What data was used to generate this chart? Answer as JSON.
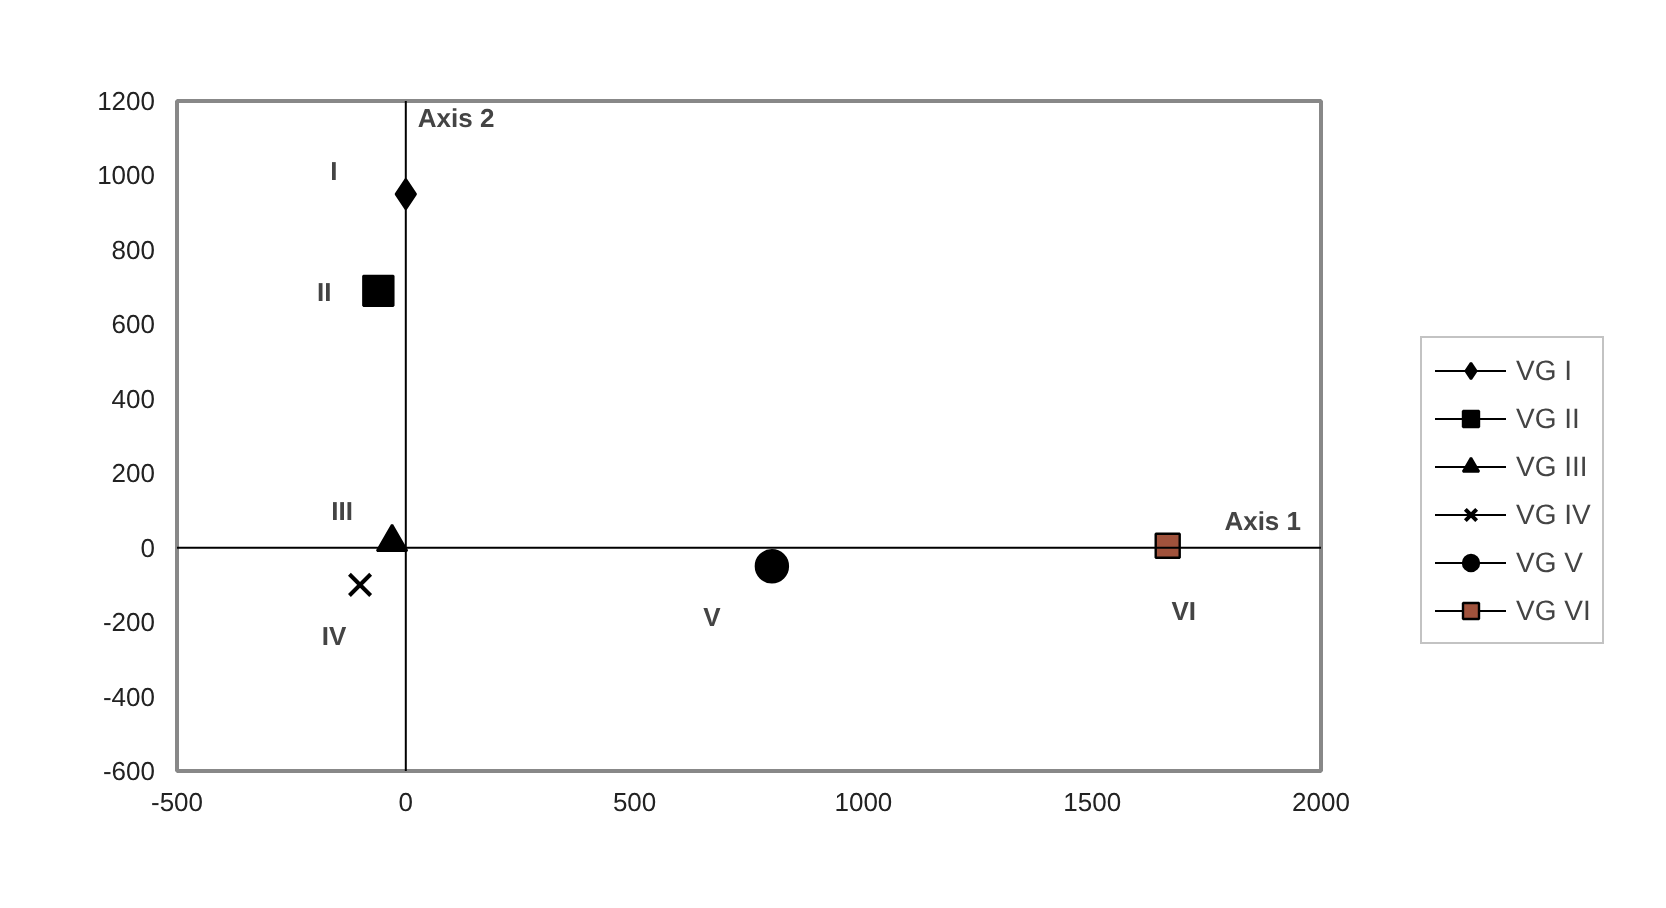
{
  "chart_data": {
    "type": "scatter",
    "xlim": [
      -500,
      2000
    ],
    "xticks": [
      -500,
      0,
      500,
      1000,
      1500,
      2000
    ],
    "ylim": [
      -600,
      1200
    ],
    "yticks": [
      -600,
      -400,
      -200,
      0,
      200,
      400,
      600,
      800,
      1000,
      1200
    ],
    "grid": false,
    "legend": "right",
    "series": [
      {
        "name": "VG I",
        "color": "#000000",
        "marker": "diamond",
        "x": [
          0
        ],
        "values": [
          950
        ]
      },
      {
        "name": "VG II",
        "color": "#000000",
        "marker": "square",
        "x": [
          -60
        ],
        "values": [
          690
        ]
      },
      {
        "name": "VG III",
        "color": "#000000",
        "marker": "triangle",
        "x": [
          -30
        ],
        "values": [
          15
        ]
      },
      {
        "name": "VG IV",
        "color": "#000000",
        "marker": "cross",
        "x": [
          -100
        ],
        "values": [
          -100
        ]
      },
      {
        "name": "VG V",
        "color": "#000000",
        "marker": "circle",
        "x": [
          800
        ],
        "values": [
          -50
        ]
      },
      {
        "name": "VG VI",
        "color": "#a0523c",
        "marker": "square",
        "x": [
          1665
        ],
        "values": [
          5
        ]
      }
    ],
    "ref_lines": [
      {
        "axis": "y",
        "value": 0,
        "label": "Axis 1"
      },
      {
        "axis": "x",
        "value": 0,
        "label": "Axis 2"
      }
    ],
    "annotations": [
      {
        "text": "I",
        "x": 0,
        "y": 950
      },
      {
        "text": "II",
        "x": -60,
        "y": 690
      },
      {
        "text": "III",
        "x": -30,
        "y": 15
      },
      {
        "text": "IV",
        "x": -100,
        "y": -100
      },
      {
        "text": "V",
        "x": 800,
        "y": -50
      },
      {
        "text": "VI",
        "x": 1665,
        "y": 5
      }
    ]
  }
}
